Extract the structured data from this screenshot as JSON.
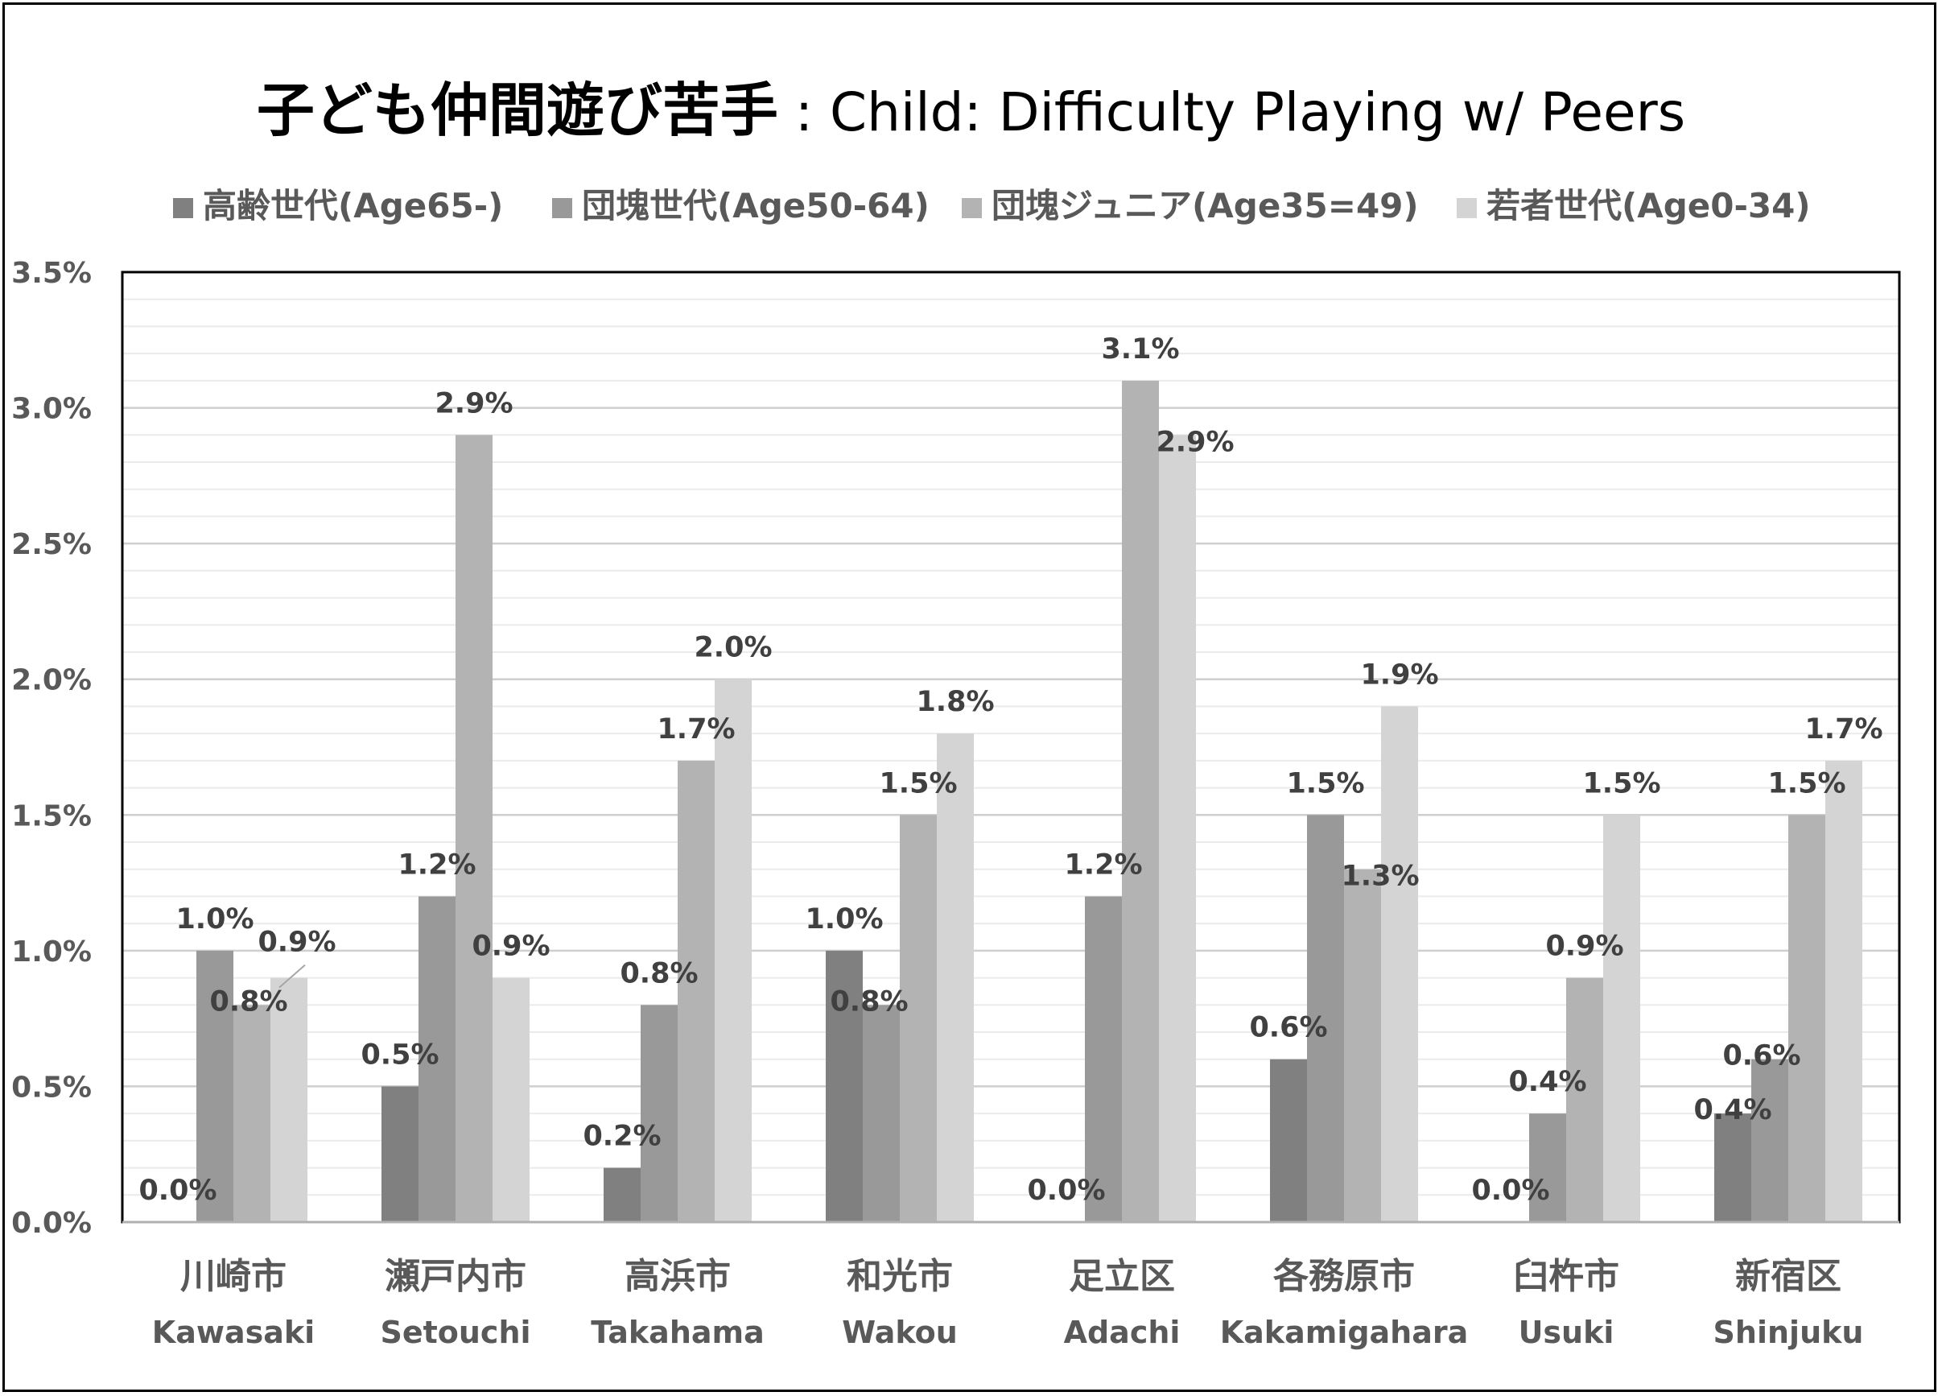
{
  "title": {
    "jp": "子ども仲間遊び苦手",
    "en": " : Child: Difficulty Playing w/ Peers"
  },
  "legend": [
    {
      "label": "高齢世代(Age65-)",
      "color": "#808080"
    },
    {
      "label": "団塊世代(Age50-64)",
      "color": "#999999"
    },
    {
      "label": "団塊ジュニア(Age35=49)",
      "color": "#b3b3b3"
    },
    {
      "label": "若者世代(Age0-34)",
      "color": "#d4d4d4"
    }
  ],
  "chart_data": {
    "type": "bar",
    "categories_jp": [
      "川崎市",
      "瀬戸内市",
      "高浜市",
      "和光市",
      "足立区",
      "各務原市",
      "臼杵市",
      "新宿区"
    ],
    "categories": [
      "Kawasaki",
      "Setouchi",
      "Takahama",
      "Wakou",
      "Adachi",
      "Kakamigahara",
      "Usuki",
      "Shinjuku"
    ],
    "series": [
      {
        "name": "高齢世代(Age65-)",
        "values": [
          0.0,
          0.5,
          0.2,
          1.0,
          0.0,
          0.6,
          0.0,
          0.4
        ],
        "color": "#808080"
      },
      {
        "name": "団塊世代(Age50-64)",
        "values": [
          1.0,
          1.2,
          0.8,
          0.8,
          1.2,
          1.5,
          0.4,
          0.6
        ],
        "color": "#999999"
      },
      {
        "name": "団塊ジュニア(Age35=49)",
        "values": [
          0.8,
          2.9,
          1.7,
          1.5,
          3.1,
          1.3,
          0.9,
          1.5
        ],
        "color": "#b3b3b3"
      },
      {
        "name": "若者世代(Age0-34)",
        "values": [
          0.9,
          0.9,
          2.0,
          1.8,
          2.9,
          1.9,
          1.5,
          1.7
        ],
        "color": "#d4d4d4"
      }
    ],
    "y_ticks": [
      "0.0%",
      "0.5%",
      "1.0%",
      "1.5%",
      "2.0%",
      "2.5%",
      "3.0%",
      "3.5%"
    ],
    "ylim": [
      0,
      3.5
    ],
    "unit": "%",
    "grid": true,
    "legend_position": "top"
  }
}
